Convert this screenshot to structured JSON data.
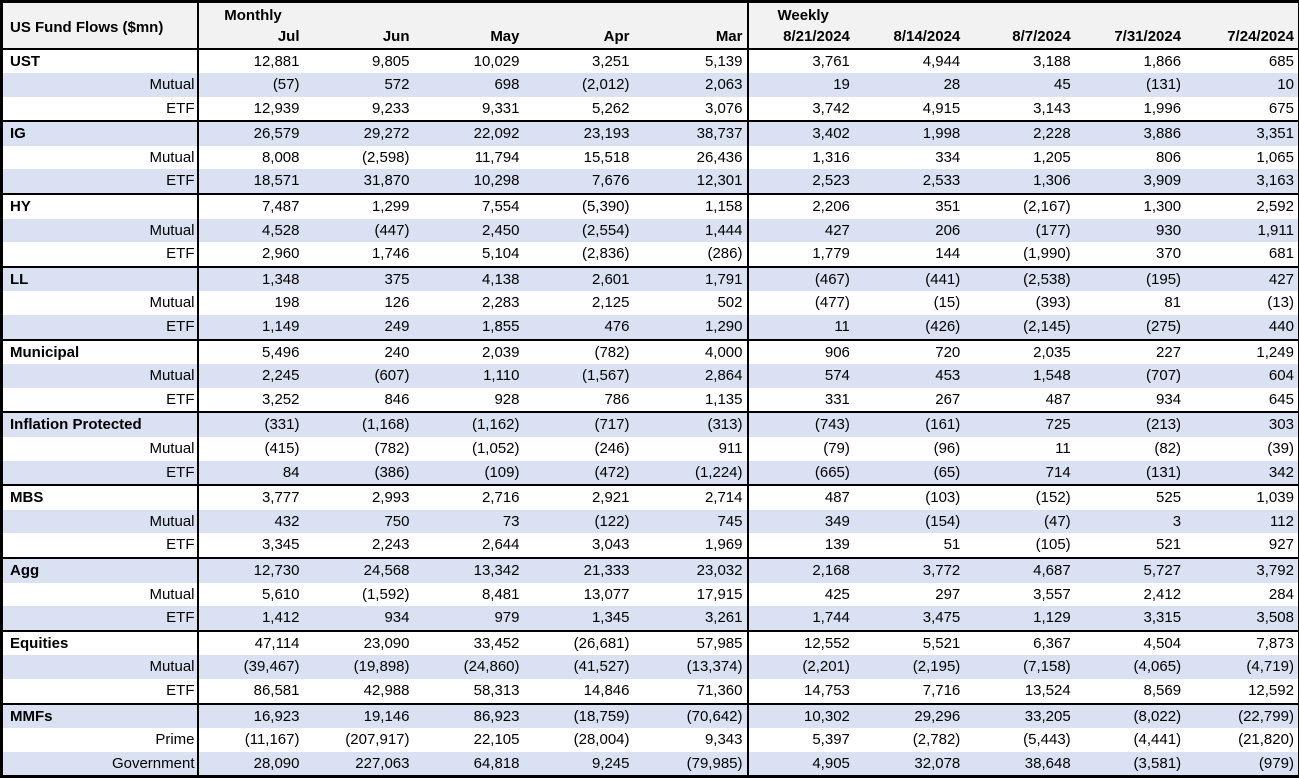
{
  "colors": {
    "stripe": "#d9e1f2",
    "header_bg": "#f2f2f2",
    "border": "#000000",
    "row_bg": "#ffffff"
  },
  "table": {
    "title": "US Fund Flows ($mn)",
    "monthly_label": "Monthly",
    "weekly_label": "Weekly",
    "monthly_columns": [
      "Jul",
      "Jun",
      "May",
      "Apr",
      "Mar"
    ],
    "weekly_columns": [
      "8/21/2024",
      "8/14/2024",
      "8/7/2024",
      "7/31/2024",
      "7/24/2024"
    ],
    "rows": [
      {
        "label": "UST",
        "group": true,
        "monthly": [
          "12,881",
          "9,805",
          "10,029",
          "3,251",
          "5,139"
        ],
        "weekly": [
          "3,761",
          "4,944",
          "3,188",
          "1,866",
          "685"
        ]
      },
      {
        "label": "Mutual",
        "group": false,
        "monthly": [
          "(57)",
          "572",
          "698",
          "(2,012)",
          "2,063"
        ],
        "weekly": [
          "19",
          "28",
          "45",
          "(131)",
          "10"
        ]
      },
      {
        "label": "ETF",
        "group": false,
        "monthly": [
          "12,939",
          "9,233",
          "9,331",
          "5,262",
          "3,076"
        ],
        "weekly": [
          "3,742",
          "4,915",
          "3,143",
          "1,996",
          "675"
        ]
      },
      {
        "label": "IG",
        "group": true,
        "monthly": [
          "26,579",
          "29,272",
          "22,092",
          "23,193",
          "38,737"
        ],
        "weekly": [
          "3,402",
          "1,998",
          "2,228",
          "3,886",
          "3,351"
        ]
      },
      {
        "label": "Mutual",
        "group": false,
        "monthly": [
          "8,008",
          "(2,598)",
          "11,794",
          "15,518",
          "26,436"
        ],
        "weekly": [
          "1,316",
          "334",
          "1,205",
          "806",
          "1,065"
        ]
      },
      {
        "label": "ETF",
        "group": false,
        "monthly": [
          "18,571",
          "31,870",
          "10,298",
          "7,676",
          "12,301"
        ],
        "weekly": [
          "2,523",
          "2,533",
          "1,306",
          "3,909",
          "3,163"
        ]
      },
      {
        "label": "HY",
        "group": true,
        "monthly": [
          "7,487",
          "1,299",
          "7,554",
          "(5,390)",
          "1,158"
        ],
        "weekly": [
          "2,206",
          "351",
          "(2,167)",
          "1,300",
          "2,592"
        ]
      },
      {
        "label": "Mutual",
        "group": false,
        "monthly": [
          "4,528",
          "(447)",
          "2,450",
          "(2,554)",
          "1,444"
        ],
        "weekly": [
          "427",
          "206",
          "(177)",
          "930",
          "1,911"
        ]
      },
      {
        "label": "ETF",
        "group": false,
        "monthly": [
          "2,960",
          "1,746",
          "5,104",
          "(2,836)",
          "(286)"
        ],
        "weekly": [
          "1,779",
          "144",
          "(1,990)",
          "370",
          "681"
        ]
      },
      {
        "label": "LL",
        "group": true,
        "monthly": [
          "1,348",
          "375",
          "4,138",
          "2,601",
          "1,791"
        ],
        "weekly": [
          "(467)",
          "(441)",
          "(2,538)",
          "(195)",
          "427"
        ]
      },
      {
        "label": "Mutual",
        "group": false,
        "monthly": [
          "198",
          "126",
          "2,283",
          "2,125",
          "502"
        ],
        "weekly": [
          "(477)",
          "(15)",
          "(393)",
          "81",
          "(13)"
        ]
      },
      {
        "label": "ETF",
        "group": false,
        "monthly": [
          "1,149",
          "249",
          "1,855",
          "476",
          "1,290"
        ],
        "weekly": [
          "11",
          "(426)",
          "(2,145)",
          "(275)",
          "440"
        ]
      },
      {
        "label": "Municipal",
        "group": true,
        "monthly": [
          "5,496",
          "240",
          "2,039",
          "(782)",
          "4,000"
        ],
        "weekly": [
          "906",
          "720",
          "2,035",
          "227",
          "1,249"
        ]
      },
      {
        "label": "Mutual",
        "group": false,
        "monthly": [
          "2,245",
          "(607)",
          "1,110",
          "(1,567)",
          "2,864"
        ],
        "weekly": [
          "574",
          "453",
          "1,548",
          "(707)",
          "604"
        ]
      },
      {
        "label": "ETF",
        "group": false,
        "monthly": [
          "3,252",
          "846",
          "928",
          "786",
          "1,135"
        ],
        "weekly": [
          "331",
          "267",
          "487",
          "934",
          "645"
        ]
      },
      {
        "label": "Inflation Protected",
        "group": true,
        "monthly": [
          "(331)",
          "(1,168)",
          "(1,162)",
          "(717)",
          "(313)"
        ],
        "weekly": [
          "(743)",
          "(161)",
          "725",
          "(213)",
          "303"
        ]
      },
      {
        "label": "Mutual",
        "group": false,
        "monthly": [
          "(415)",
          "(782)",
          "(1,052)",
          "(246)",
          "911"
        ],
        "weekly": [
          "(79)",
          "(96)",
          "11",
          "(82)",
          "(39)"
        ]
      },
      {
        "label": "ETF",
        "group": false,
        "monthly": [
          "84",
          "(386)",
          "(109)",
          "(472)",
          "(1,224)"
        ],
        "weekly": [
          "(665)",
          "(65)",
          "714",
          "(131)",
          "342"
        ]
      },
      {
        "label": "MBS",
        "group": true,
        "monthly": [
          "3,777",
          "2,993",
          "2,716",
          "2,921",
          "2,714"
        ],
        "weekly": [
          "487",
          "(103)",
          "(152)",
          "525",
          "1,039"
        ]
      },
      {
        "label": "Mutual",
        "group": false,
        "monthly": [
          "432",
          "750",
          "73",
          "(122)",
          "745"
        ],
        "weekly": [
          "349",
          "(154)",
          "(47)",
          "3",
          "112"
        ]
      },
      {
        "label": "ETF",
        "group": false,
        "monthly": [
          "3,345",
          "2,243",
          "2,644",
          "3,043",
          "1,969"
        ],
        "weekly": [
          "139",
          "51",
          "(105)",
          "521",
          "927"
        ]
      },
      {
        "label": "Agg",
        "group": true,
        "monthly": [
          "12,730",
          "24,568",
          "13,342",
          "21,333",
          "23,032"
        ],
        "weekly": [
          "2,168",
          "3,772",
          "4,687",
          "5,727",
          "3,792"
        ]
      },
      {
        "label": "Mutual",
        "group": false,
        "monthly": [
          "5,610",
          "(1,592)",
          "8,481",
          "13,077",
          "17,915"
        ],
        "weekly": [
          "425",
          "297",
          "3,557",
          "2,412",
          "284"
        ]
      },
      {
        "label": "ETF",
        "group": false,
        "monthly": [
          "1,412",
          "934",
          "979",
          "1,345",
          "3,261"
        ],
        "weekly": [
          "1,744",
          "3,475",
          "1,129",
          "3,315",
          "3,508"
        ]
      },
      {
        "label": "Equities",
        "group": true,
        "monthly": [
          "47,114",
          "23,090",
          "33,452",
          "(26,681)",
          "57,985"
        ],
        "weekly": [
          "12,552",
          "5,521",
          "6,367",
          "4,504",
          "7,873"
        ]
      },
      {
        "label": "Mutual",
        "group": false,
        "monthly": [
          "(39,467)",
          "(19,898)",
          "(24,860)",
          "(41,527)",
          "(13,374)"
        ],
        "weekly": [
          "(2,201)",
          "(2,195)",
          "(7,158)",
          "(4,065)",
          "(4,719)"
        ]
      },
      {
        "label": "ETF",
        "group": false,
        "monthly": [
          "86,581",
          "42,988",
          "58,313",
          "14,846",
          "71,360"
        ],
        "weekly": [
          "14,753",
          "7,716",
          "13,524",
          "8,569",
          "12,592"
        ]
      },
      {
        "label": "MMFs",
        "group": true,
        "monthly": [
          "16,923",
          "19,146",
          "86,923",
          "(18,759)",
          "(70,642)"
        ],
        "weekly": [
          "10,302",
          "29,296",
          "33,205",
          "(8,022)",
          "(22,799)"
        ]
      },
      {
        "label": "Prime",
        "group": false,
        "monthly": [
          "(11,167)",
          "(207,917)",
          "22,105",
          "(28,004)",
          "9,343"
        ],
        "weekly": [
          "5,397",
          "(2,782)",
          "(5,443)",
          "(4,441)",
          "(21,820)"
        ]
      },
      {
        "label": "Government",
        "group": false,
        "monthly": [
          "28,090",
          "227,063",
          "64,818",
          "9,245",
          "(79,985)"
        ],
        "weekly": [
          "4,905",
          "32,078",
          "38,648",
          "(3,581)",
          "(979)"
        ]
      }
    ]
  }
}
